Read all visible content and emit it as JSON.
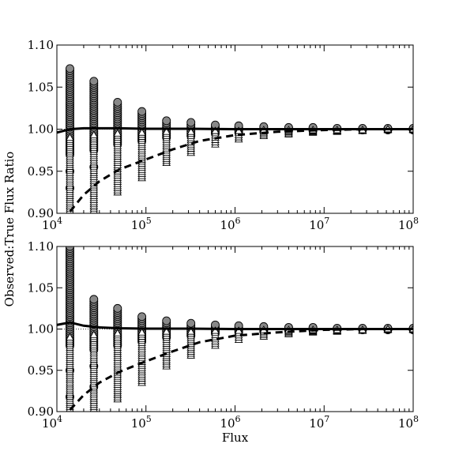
{
  "chart_data": [
    {
      "type": "scatter",
      "x_scale": "log",
      "xlim": [
        10000,
        100000000
      ],
      "ylim": [
        0.9,
        1.1
      ],
      "x_ticks": [
        {
          "value": 10000,
          "base": "10",
          "exp": "4"
        },
        {
          "value": 100000,
          "base": "10",
          "exp": "5"
        },
        {
          "value": 1000000,
          "base": "10",
          "exp": "6"
        },
        {
          "value": 10000000,
          "base": "10",
          "exp": "7"
        },
        {
          "value": 100000000,
          "base": "10",
          "exp": "8"
        }
      ],
      "y_ticks": [
        "0.90",
        "0.95",
        "1.00",
        "1.05",
        "1.10"
      ],
      "xlabel": "",
      "ylabel": "",
      "reference_line": 1.0,
      "fluxes": [
        14000,
        26000,
        48000,
        90000,
        170000,
        320000,
        600000,
        1100000,
        2100000,
        4000000,
        7500000,
        14000000,
        27000000,
        52000000,
        100000000
      ],
      "series": [
        {
          "marker": "circle",
          "color": "#888888",
          "ranges": [
            [
              0.97,
              1.072
            ],
            [
              0.975,
              1.057
            ],
            [
              0.982,
              1.032
            ],
            [
              0.986,
              1.021
            ],
            [
              0.99,
              1.01
            ],
            [
              0.992,
              1.008
            ],
            [
              0.995,
              1.005
            ],
            [
              0.996,
              1.004
            ],
            [
              0.997,
              1.003
            ],
            [
              0.998,
              1.002
            ],
            [
              0.998,
              1.002
            ],
            [
              0.999,
              1.001
            ],
            [
              0.999,
              1.001
            ],
            [
              0.999,
              1.001
            ],
            [
              0.999,
              1.001
            ]
          ],
          "outliers": [
            [
              14000,
              0.95
            ],
            [
              14000,
              0.93
            ],
            [
              26000,
              0.955
            ]
          ]
        },
        {
          "marker": "triangle",
          "color": "#ffffff",
          "ranges": [
            [
              0.901,
              0.99
            ],
            [
              0.901,
              0.993
            ],
            [
              0.925,
              0.995
            ],
            [
              0.942,
              0.996
            ],
            [
              0.96,
              0.997
            ],
            [
              0.972,
              0.997
            ],
            [
              0.982,
              0.998
            ],
            [
              0.988,
              0.998
            ],
            [
              0.992,
              0.999
            ],
            [
              0.994,
              0.999
            ],
            [
              0.996,
              0.999
            ],
            [
              0.997,
              0.999
            ],
            [
              0.998,
              0.999
            ],
            [
              0.999,
              1.0
            ],
            [
              0.999,
              1.0
            ]
          ],
          "outliers": []
        },
        {
          "name": "solid-curve",
          "style": "solid",
          "points": [
            [
              10000,
              0.996
            ],
            [
              14000,
              1.0
            ],
            [
              20000,
              1.001
            ],
            [
              30000,
              1.001
            ],
            [
              50000,
              1.001
            ],
            [
              100000,
              1.0005
            ],
            [
              300000,
              1.0005
            ],
            [
              1000000,
              1.0
            ],
            [
              100000000,
              1.0
            ]
          ]
        },
        {
          "name": "dashed-curve",
          "style": "dashed",
          "points": [
            [
              14000,
              0.902
            ],
            [
              20000,
              0.922
            ],
            [
              30000,
              0.938
            ],
            [
              50000,
              0.952
            ],
            [
              100000,
              0.964
            ],
            [
              200000,
              0.976
            ],
            [
              400000,
              0.986
            ],
            [
              1000000,
              0.993
            ],
            [
              3000000,
              0.997
            ],
            [
              10000000,
              0.999
            ],
            [
              30000000,
              1.0
            ],
            [
              100000000,
              1.0
            ]
          ]
        }
      ]
    },
    {
      "type": "scatter",
      "x_scale": "log",
      "xlim": [
        10000,
        100000000
      ],
      "ylim": [
        0.9,
        1.1
      ],
      "x_ticks": [
        {
          "value": 10000,
          "base": "10",
          "exp": "4"
        },
        {
          "value": 100000,
          "base": "10",
          "exp": "5"
        },
        {
          "value": 1000000,
          "base": "10",
          "exp": "6"
        },
        {
          "value": 10000000,
          "base": "10",
          "exp": "7"
        },
        {
          "value": 100000000,
          "base": "10",
          "exp": "8"
        }
      ],
      "y_ticks": [
        "0.90",
        "0.95",
        "1.00",
        "1.05",
        "1.10"
      ],
      "xlabel": "Flux",
      "ylabel": "",
      "reference_line": 1.0,
      "fluxes": [
        14000,
        26000,
        48000,
        90000,
        170000,
        320000,
        600000,
        1100000,
        2100000,
        4000000,
        7500000,
        14000000,
        27000000,
        52000000,
        100000000
      ],
      "series": [
        {
          "marker": "circle",
          "color": "#888888",
          "ranges": [
            [
              0.98,
              1.1
            ],
            [
              0.975,
              1.036
            ],
            [
              0.98,
              1.025
            ],
            [
              0.985,
              1.015
            ],
            [
              0.99,
              1.01
            ],
            [
              0.992,
              1.007
            ],
            [
              0.995,
              1.005
            ],
            [
              0.996,
              1.004
            ],
            [
              0.997,
              1.003
            ],
            [
              0.998,
              1.002
            ],
            [
              0.998,
              1.002
            ],
            [
              0.999,
              1.001
            ],
            [
              0.999,
              1.001
            ],
            [
              0.999,
              1.001
            ],
            [
              0.999,
              1.001
            ]
          ],
          "outliers": [
            [
              14000,
              0.95
            ],
            [
              14000,
              0.918
            ],
            [
              26000,
              0.955
            ],
            [
              26000,
              0.93
            ]
          ]
        },
        {
          "marker": "triangle",
          "color": "#ffffff",
          "ranges": [
            [
              0.901,
              0.99
            ],
            [
              0.901,
              0.993
            ],
            [
              0.915,
              0.995
            ],
            [
              0.935,
              0.996
            ],
            [
              0.955,
              0.997
            ],
            [
              0.968,
              0.997
            ],
            [
              0.98,
              0.998
            ],
            [
              0.987,
              0.998
            ],
            [
              0.991,
              0.999
            ],
            [
              0.994,
              0.999
            ],
            [
              0.996,
              0.999
            ],
            [
              0.997,
              0.999
            ],
            [
              0.998,
              0.999
            ],
            [
              0.999,
              1.0
            ],
            [
              0.999,
              1.0
            ]
          ],
          "outliers": []
        },
        {
          "name": "solid-curve",
          "style": "solid",
          "points": [
            [
              10000,
              1.005
            ],
            [
              14000,
              1.008
            ],
            [
              20000,
              1.004
            ],
            [
              30000,
              1.002
            ],
            [
              50000,
              1.001
            ],
            [
              100000,
              1.0005
            ],
            [
              300000,
              1.0005
            ],
            [
              1000000,
              1.0
            ],
            [
              100000000,
              1.0
            ]
          ]
        },
        {
          "name": "dashed-curve",
          "style": "dashed",
          "points": [
            [
              14000,
              0.902
            ],
            [
              20000,
              0.92
            ],
            [
              30000,
              0.935
            ],
            [
              50000,
              0.948
            ],
            [
              100000,
              0.961
            ],
            [
              200000,
              0.973
            ],
            [
              400000,
              0.984
            ],
            [
              1000000,
              0.992
            ],
            [
              3000000,
              0.996
            ],
            [
              10000000,
              0.999
            ],
            [
              30000000,
              1.0
            ],
            [
              100000000,
              1.0
            ]
          ]
        }
      ]
    }
  ],
  "shared_ylabel": "Observed:True Flux Ratio",
  "colors": {
    "axis": "#000000",
    "gray_marker": "#888888",
    "white_marker": "#ffffff"
  }
}
